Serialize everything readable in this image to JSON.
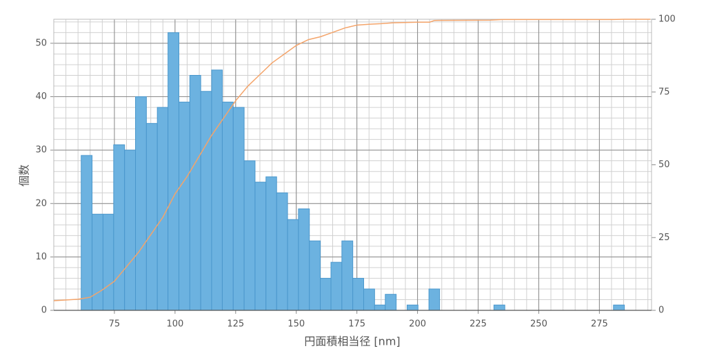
{
  "chart_data": {
    "type": "histogram",
    "xlabel": "円面積相当径 [nm]",
    "ylabel": "個数",
    "bins": [
      61.3,
      65.8,
      70.3,
      74.7,
      79.2,
      83.7,
      88.2,
      92.7,
      97.1,
      101.6,
      106.1,
      110.6,
      115.1,
      119.5,
      124.0,
      128.5,
      133.0,
      137.5,
      141.9,
      146.4,
      150.9,
      155.4,
      159.9,
      164.3,
      168.8,
      173.3,
      177.8,
      182.3,
      186.7,
      191.2,
      195.7,
      200.2,
      204.7,
      209.1,
      213.6,
      218.1,
      222.6,
      227.1,
      231.5,
      236.0,
      240.5,
      245.0,
      249.5,
      253.9,
      258.4,
      262.9,
      267.4,
      271.9,
      276.3,
      280.8,
      285.3
    ],
    "values": [
      29,
      18,
      18,
      31,
      30,
      40,
      35,
      38,
      52,
      39,
      44,
      41,
      45,
      39,
      38,
      28,
      24,
      25,
      22,
      17,
      19,
      13,
      6,
      9,
      13,
      6,
      4,
      1,
      3,
      0,
      1,
      0,
      4,
      0,
      0,
      0,
      0,
      0,
      1,
      0,
      0,
      0,
      0,
      0,
      0,
      0,
      0,
      0,
      0,
      1
    ],
    "color": "#6cb2e0",
    "edge_color": "#4a97cc",
    "line": {
      "type": "line",
      "axis": "y2",
      "color": "#f4a46a",
      "x": [
        50,
        60,
        65,
        70,
        75,
        80,
        85,
        90,
        95,
        100,
        105,
        110,
        115,
        120,
        125,
        130,
        135,
        140,
        145,
        150,
        155,
        160,
        165,
        170,
        175,
        180,
        185,
        190,
        200,
        205,
        207,
        230,
        235,
        280,
        285,
        296
      ],
      "values": [
        3.3,
        3.8,
        4.5,
        7,
        10,
        15,
        20,
        26,
        32,
        40,
        46,
        53,
        60,
        66,
        72,
        77,
        81,
        85,
        88,
        91,
        93,
        94,
        95.5,
        97,
        98,
        98.3,
        98.5,
        98.8,
        99,
        99,
        99.6,
        99.7,
        99.9,
        99.9,
        100,
        100
      ]
    },
    "xlim": [
      50,
      296.5
    ],
    "xticks": [
      75,
      100,
      125,
      150,
      175,
      200,
      225,
      250,
      275
    ],
    "ylim": [
      0,
      54.5
    ],
    "yticks": [
      0,
      10,
      20,
      30,
      40,
      50
    ],
    "y2lim": [
      0,
      100
    ],
    "y2ticks": [
      0,
      25,
      50,
      75,
      100
    ],
    "grid": true,
    "minor_grid": {
      "x": 5,
      "y": 2
    }
  }
}
